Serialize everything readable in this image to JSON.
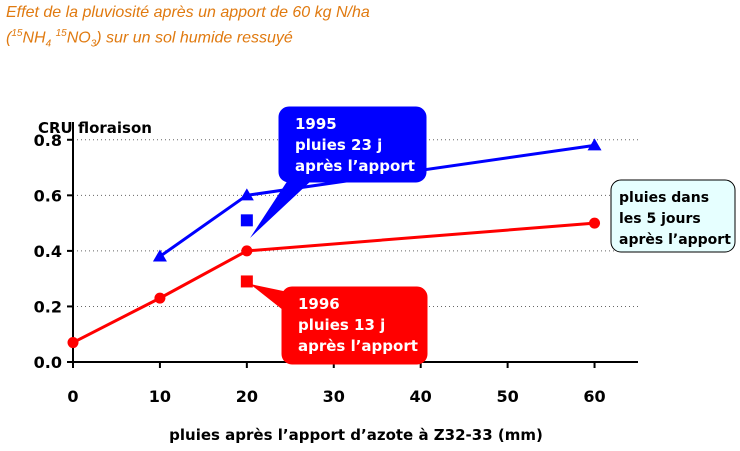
{
  "page_title": {
    "line1": "Effet de la pluviosité après un apport de 60 kg N/ha",
    "line2_open": "(",
    "iso1": "15",
    "nh": "NH",
    "sub4": "4",
    "space": " ",
    "iso2": "15",
    "no": "NO",
    "sub3": "3",
    "line2_rest": ") sur un sol humide ressuyé"
  },
  "chart_data": {
    "type": "line",
    "ylabel": "CRU floraison",
    "xlabel": "pluies après l’apport d’azote à Z32-33 (mm)",
    "xlim": [
      0,
      65
    ],
    "ylim": [
      0,
      0.9
    ],
    "x_ticks": [
      "0",
      "10",
      "20",
      "30",
      "40",
      "50",
      "60"
    ],
    "y_ticks": [
      "0.0",
      "0.2",
      "0.4",
      "0.6",
      "0.8"
    ],
    "grid": "dotted horizontal",
    "series": [
      {
        "key": "1995",
        "color": "#0000ff",
        "marker": "triangle",
        "x": [
          10,
          20,
          60
        ],
        "y": [
          0.38,
          0.6,
          0.78
        ]
      },
      {
        "key": "1996",
        "color": "#ff0000",
        "marker": "circle",
        "x": [
          0,
          10,
          20,
          60
        ],
        "y": [
          0.07,
          0.23,
          0.4,
          0.5
        ]
      }
    ],
    "isolated_points": [
      {
        "key": "1995",
        "color": "#0000ff",
        "marker": "square",
        "x": 20,
        "y": 0.51
      },
      {
        "key": "1996",
        "color": "#ff0000",
        "marker": "square",
        "x": 20,
        "y": 0.29
      }
    ],
    "annotations": [
      {
        "key": "1995",
        "lines": [
          "1995",
          "pluies 23 j",
          "après l’apport"
        ],
        "fill": "#0000ff",
        "text_color": "#ffffff"
      },
      {
        "key": "1996",
        "lines": [
          "1996",
          "pluies 13 j",
          "après l’apport"
        ],
        "fill": "#ff0000",
        "text_color": "#ffffff"
      },
      {
        "key": "legend",
        "lines": [
          "pluies dans",
          "les 5 jours",
          "après l’apport"
        ],
        "fill": "#e6ffff",
        "text_color": "#000000"
      }
    ]
  }
}
